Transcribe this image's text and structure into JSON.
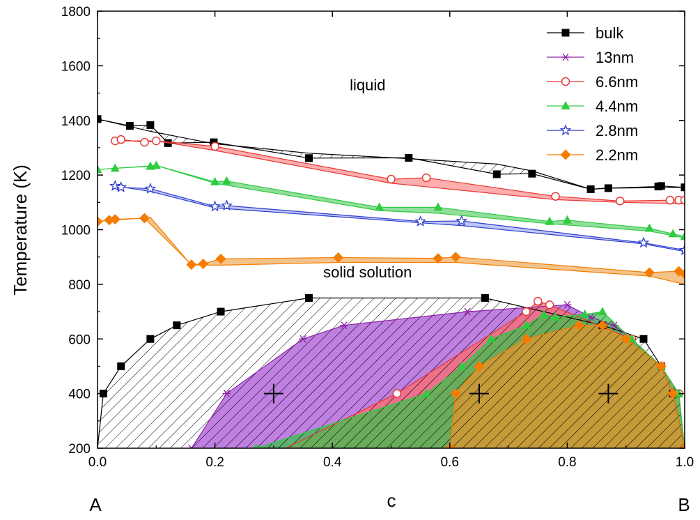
{
  "chart_data": {
    "type": "line",
    "xlabel": "c",
    "ylabel": "Temperature (K)",
    "xlim": [
      0.0,
      1.0
    ],
    "ylim": [
      200,
      1800
    ],
    "xticks": [
      "0.0",
      "0.2",
      "0.4",
      "0.6",
      "0.8",
      "1.0"
    ],
    "yticks": [
      "200",
      "400",
      "600",
      "800",
      "1000",
      "1200",
      "1400",
      "1600",
      "1800"
    ],
    "legend_position": "top-right",
    "endpoint_labels": {
      "left": "A",
      "right": "B"
    },
    "annotations": [
      {
        "text": "liquid",
        "x": 0.46,
        "y": 1510
      },
      {
        "text": "solid solution",
        "x": 0.46,
        "y": 825
      }
    ],
    "crosses": [
      {
        "x": 0.3,
        "y": 400
      },
      {
        "x": 0.65,
        "y": 400
      },
      {
        "x": 0.87,
        "y": 400
      }
    ],
    "series": [
      {
        "name": "bulk",
        "color": "#000000",
        "marker": "square",
        "liquidus": [
          [
            0.0,
            1405
          ],
          [
            0.055,
            1380
          ],
          [
            0.09,
            1383
          ],
          [
            0.12,
            1317
          ],
          [
            0.198,
            1320
          ],
          [
            0.36,
            1262
          ],
          [
            0.53,
            1263
          ],
          [
            0.68,
            1203
          ],
          [
            0.74,
            1205
          ],
          [
            0.84,
            1148
          ],
          [
            0.87,
            1152
          ],
          [
            0.955,
            1158
          ],
          [
            0.96,
            1160
          ],
          [
            1.0,
            1155
          ]
        ],
        "solidus": [
          [
            0.0,
            1405
          ],
          [
            0.09,
            1360
          ],
          [
            0.198,
            1315
          ],
          [
            0.36,
            1280
          ],
          [
            0.53,
            1260
          ],
          [
            0.68,
            1240
          ],
          [
            0.74,
            1215
          ],
          [
            0.84,
            1148
          ],
          [
            0.87,
            1152
          ],
          [
            1.0,
            1155
          ]
        ],
        "miscibility": [
          [
            0.0,
            200
          ],
          [
            0.01,
            400
          ],
          [
            0.04,
            500
          ],
          [
            0.09,
            600
          ],
          [
            0.135,
            650
          ],
          [
            0.21,
            700
          ],
          [
            0.36,
            750
          ],
          [
            0.66,
            750
          ],
          [
            0.86,
            650
          ],
          [
            0.93,
            600
          ],
          [
            0.96,
            500
          ],
          [
            0.98,
            400
          ],
          [
            1.0,
            200
          ]
        ]
      },
      {
        "name": "13nm",
        "color": "#8e24aa",
        "marker": "asterisk",
        "miscibility": [
          [
            0.16,
            200
          ],
          [
            0.22,
            400
          ],
          [
            0.35,
            600
          ],
          [
            0.42,
            650
          ],
          [
            0.63,
            700
          ],
          [
            0.8,
            725
          ],
          [
            0.84,
            680
          ],
          [
            0.88,
            650
          ],
          [
            0.91,
            600
          ],
          [
            0.96,
            500
          ],
          [
            0.98,
            400
          ],
          [
            1.0,
            200
          ]
        ]
      },
      {
        "name": "6.6nm",
        "color": "#e53935",
        "marker": "circle",
        "liquidus": [
          [
            0.03,
            1325
          ],
          [
            0.04,
            1330
          ],
          [
            0.08,
            1320
          ],
          [
            0.1,
            1325
          ],
          [
            0.2,
            1305
          ],
          [
            0.5,
            1185
          ],
          [
            0.56,
            1190
          ],
          [
            0.78,
            1122
          ],
          [
            0.89,
            1105
          ],
          [
            0.975,
            1108
          ],
          [
            0.99,
            1108
          ],
          [
            1.0,
            1108
          ]
        ],
        "solidus": [
          [
            0.03,
            1325
          ],
          [
            0.1,
            1325
          ],
          [
            0.2,
            1290
          ],
          [
            0.5,
            1170
          ],
          [
            0.78,
            1110
          ],
          [
            0.89,
            1100
          ],
          [
            1.0,
            1095
          ]
        ],
        "miscibility": [
          [
            0.32,
            200
          ],
          [
            0.51,
            400
          ],
          [
            0.73,
            700
          ],
          [
            0.75,
            738
          ],
          [
            0.77,
            725
          ],
          [
            0.91,
            600
          ],
          [
            0.96,
            500
          ],
          [
            0.99,
            400
          ],
          [
            1.0,
            200
          ]
        ]
      },
      {
        "name": "4.4nm",
        "color": "#2ecc40",
        "marker": "triangle",
        "liquidus": [
          [
            0.0,
            1220
          ],
          [
            0.03,
            1225
          ],
          [
            0.09,
            1232
          ],
          [
            0.1,
            1235
          ],
          [
            0.2,
            1175
          ],
          [
            0.22,
            1178
          ],
          [
            0.48,
            1082
          ],
          [
            0.58,
            1082
          ],
          [
            0.77,
            1030
          ],
          [
            0.8,
            1035
          ],
          [
            0.94,
            1005
          ],
          [
            0.98,
            985
          ],
          [
            1.0,
            975
          ]
        ],
        "solidus": [
          [
            0.0,
            1220
          ],
          [
            0.1,
            1235
          ],
          [
            0.2,
            1170
          ],
          [
            0.48,
            1070
          ],
          [
            0.58,
            1060
          ],
          [
            0.77,
            1022
          ],
          [
            0.94,
            995
          ],
          [
            1.0,
            970
          ]
        ],
        "miscibility": [
          [
            0.27,
            200
          ],
          [
            0.56,
            400
          ],
          [
            0.62,
            500
          ],
          [
            0.67,
            600
          ],
          [
            0.73,
            650
          ],
          [
            0.76,
            690
          ],
          [
            0.78,
            680
          ],
          [
            0.83,
            690
          ],
          [
            0.86,
            700
          ],
          [
            0.91,
            600
          ],
          [
            0.96,
            500
          ],
          [
            0.99,
            400
          ],
          [
            1.0,
            200
          ]
        ]
      },
      {
        "name": "2.8nm",
        "color": "#2e3fcc",
        "marker": "star",
        "liquidus": [
          [
            0.03,
            1160
          ],
          [
            0.04,
            1155
          ],
          [
            0.09,
            1150
          ],
          [
            0.2,
            1085
          ],
          [
            0.22,
            1088
          ],
          [
            0.55,
            1030
          ],
          [
            0.62,
            1032
          ],
          [
            0.93,
            952
          ],
          [
            1.0,
            925
          ]
        ],
        "solidus": [
          [
            0.03,
            1160
          ],
          [
            0.09,
            1140
          ],
          [
            0.2,
            1080
          ],
          [
            0.55,
            1025
          ],
          [
            0.62,
            1015
          ],
          [
            0.93,
            948
          ],
          [
            1.0,
            920
          ]
        ]
      },
      {
        "name": "2.2nm",
        "color": "#f57c00",
        "marker": "diamond",
        "liquidus": [
          [
            0.0,
            1030
          ],
          [
            0.02,
            1035
          ],
          [
            0.03,
            1038
          ],
          [
            0.08,
            1042
          ],
          [
            0.16,
            872
          ],
          [
            0.18,
            875
          ],
          [
            0.21,
            893
          ],
          [
            0.41,
            898
          ],
          [
            0.58,
            895
          ],
          [
            0.61,
            900
          ],
          [
            0.94,
            843
          ],
          [
            0.99,
            848
          ],
          [
            1.0,
            838
          ]
        ],
        "solidus": [
          [
            0.0,
            1030
          ],
          [
            0.09,
            1045
          ],
          [
            0.16,
            870
          ],
          [
            0.21,
            870
          ],
          [
            0.41,
            880
          ],
          [
            0.61,
            880
          ],
          [
            0.94,
            830
          ],
          [
            1.0,
            800
          ]
        ],
        "miscibility": [
          [
            0.6,
            200
          ],
          [
            0.61,
            400
          ],
          [
            0.65,
            500
          ],
          [
            0.73,
            600
          ],
          [
            0.82,
            650
          ],
          [
            0.86,
            650
          ],
          [
            0.9,
            600
          ],
          [
            0.96,
            500
          ],
          [
            0.98,
            400
          ],
          [
            1.0,
            200
          ]
        ]
      }
    ]
  }
}
